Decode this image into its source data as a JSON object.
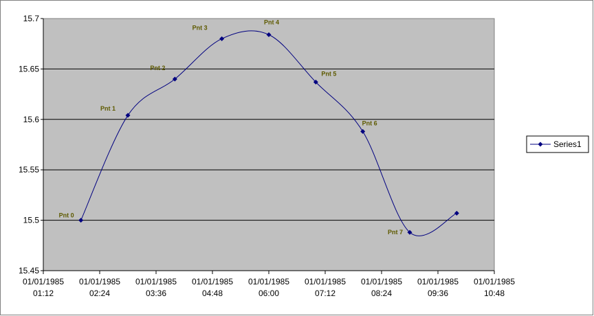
{
  "chart_data": {
    "type": "scatter",
    "series": [
      {
        "name": "Series1",
        "color": "#000080",
        "x": [
          "1985-01-01T02:00",
          "1985-01-01T03:00",
          "1985-01-01T04:00",
          "1985-01-01T05:00",
          "1985-01-01T06:00",
          "1985-01-01T07:00",
          "1985-01-01T08:00",
          "1985-01-01T09:00",
          "1985-01-01T10:00"
        ],
        "values": [
          15.5,
          15.604,
          15.64,
          15.68,
          15.684,
          15.637,
          15.588,
          15.488,
          15.507
        ],
        "point_labels": [
          "Pnt 0",
          "Pnt 1",
          "Pnt 2",
          "Pnt 3",
          "Pnt 4",
          "Pnt 5",
          "Pnt 6",
          "Pnt 7",
          null
        ]
      }
    ],
    "xlim": [
      "1985-01-01T01:12",
      "1985-01-01T10:48"
    ],
    "xticks": [
      {
        "value": "1985-01-01T01:12",
        "label": "01/01/1985 01:12"
      },
      {
        "value": "1985-01-01T02:24",
        "label": "01/01/1985 02:24"
      },
      {
        "value": "1985-01-01T03:36",
        "label": "01/01/1985 03:36"
      },
      {
        "value": "1985-01-01T04:48",
        "label": "01/01/1985 04:48"
      },
      {
        "value": "1985-01-01T06:00",
        "label": "01/01/1985 06:00"
      },
      {
        "value": "1985-01-01T07:12",
        "label": "01/01/1985 07:12"
      },
      {
        "value": "1985-01-01T08:24",
        "label": "01/01/1985 08:24"
      },
      {
        "value": "1985-01-01T09:36",
        "label": "01/01/1985 09:36"
      },
      {
        "value": "1985-01-01T10:48",
        "label": "01/01/1985 10:48"
      }
    ],
    "ylim": [
      15.45,
      15.7
    ],
    "yticks": [
      15.45,
      15.5,
      15.55,
      15.6,
      15.65,
      15.7
    ],
    "grid": true,
    "smooth": true,
    "legend": "right"
  }
}
